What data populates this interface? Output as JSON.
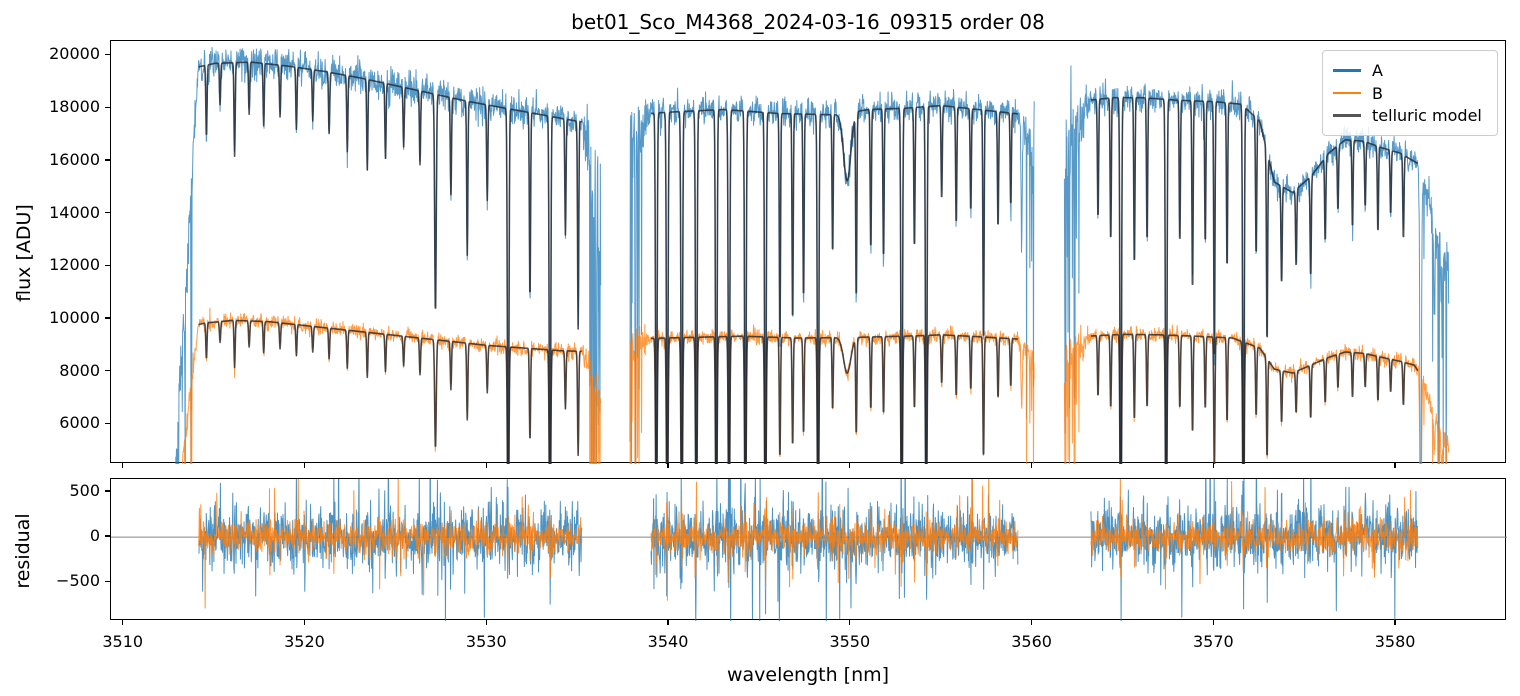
{
  "title": "bet01_Sco_M4368_2024-03-16_09315  order 08",
  "legend": {
    "items": [
      {
        "label": "A",
        "color": "#1f77b4"
      },
      {
        "label": "B",
        "color": "#ff7f0e"
      },
      {
        "label": "telluric model",
        "color": "#555555"
      }
    ]
  },
  "chart_data": {
    "type": "line",
    "title": "bet01_Sco_M4368_2024-03-16_09315  order 08",
    "xlabel": "wavelength [nm]",
    "ylabel_top": "flux [ADU]",
    "ylabel_bottom": "residual",
    "xlim": [
      3509.3,
      3586.1
    ],
    "ylim_top": [
      4500,
      20550
    ],
    "ylim_bottom": [
      -930,
      645
    ],
    "xticks": [
      3510,
      3520,
      3530,
      3540,
      3550,
      3560,
      3570,
      3580
    ],
    "yticks_top": [
      6000,
      8000,
      10000,
      12000,
      14000,
      16000,
      18000,
      20000
    ],
    "yticks_bottom": [
      "−500",
      "0",
      "500"
    ],
    "yticks_bottom_values": [
      -500,
      0,
      500
    ],
    "grid": false,
    "legend_position": "upper right",
    "series": [
      {
        "name": "A",
        "color": "#1f77b4",
        "alpha": 0.75,
        "lw": 1.0
      },
      {
        "name": "B",
        "color": "#ff7f0e",
        "alpha": 0.78,
        "lw": 1.0
      },
      {
        "name": "telluric model",
        "color": "#23272f",
        "alpha": 0.8,
        "lw": 1.6
      }
    ],
    "residual_zero_line_color": "#888888",
    "noise": {
      "seed": 42,
      "dx": 0.02,
      "rel": 0.012,
      "line_boost": 1.8,
      "abs_A": 180,
      "abs_B": 90,
      "res_A": 165,
      "res_B": 85,
      "res_line_boost": 2.4,
      "tail_p": 0.05,
      "tail_A": 520,
      "tail_B": 260,
      "default_line_width": 0.045
    },
    "segments": [
      {
        "range": [
          3512.86,
          3536.25
        ],
        "core": [
          3514.1,
          3535.2
        ],
        "edge_left": {
          "low": 0.25,
          "noise": 5.0,
          "drop": 0.25,
          "drop_lo": 0.25,
          "drop_hi": 0.95
        },
        "edge_right": {
          "low": 0.8,
          "noise": 8.0,
          "drop": 0.5,
          "drop_lo": 0.05,
          "drop_hi": 0.9
        },
        "continuum_A": [
          [
            3512.86,
            18800
          ],
          [
            3513.3,
            19300
          ],
          [
            3514,
            19550
          ],
          [
            3515,
            19700
          ],
          [
            3517,
            19750
          ],
          [
            3519,
            19600
          ],
          [
            3521,
            19400
          ],
          [
            3523,
            19150
          ],
          [
            3525,
            18850
          ],
          [
            3527,
            18550
          ],
          [
            3529,
            18250
          ],
          [
            3531,
            18000
          ],
          [
            3533,
            17750
          ],
          [
            3535,
            17500
          ],
          [
            3536.25,
            17400
          ]
        ],
        "continuum_B": [
          [
            3512.86,
            9400
          ],
          [
            3513.5,
            9700
          ],
          [
            3514.5,
            9850
          ],
          [
            3516,
            9950
          ],
          [
            3518,
            9900
          ],
          [
            3520,
            9750
          ],
          [
            3522,
            9600
          ],
          [
            3524,
            9450
          ],
          [
            3526,
            9300
          ],
          [
            3528,
            9150
          ],
          [
            3530,
            9000
          ],
          [
            3532,
            8900
          ],
          [
            3534,
            8800
          ],
          [
            3536.25,
            8750
          ]
        ],
        "lines": [
          [
            3514.55,
            0.14
          ],
          [
            3515.3,
            0.08
          ],
          [
            3516.1,
            0.18
          ],
          [
            3516.9,
            0.1
          ],
          [
            3517.7,
            0.12
          ],
          [
            3518.6,
            0.1
          ],
          [
            3519.5,
            0.12
          ],
          [
            3520.4,
            0.1
          ],
          [
            3521.3,
            0.12
          ],
          [
            3522.3,
            0.15
          ],
          [
            3523.4,
            0.18
          ],
          [
            3524.4,
            0.15
          ],
          [
            3525.4,
            0.12
          ],
          [
            3526.3,
            0.15
          ],
          [
            3527.15,
            0.45,
            0.06
          ],
          [
            3528.0,
            0.2
          ],
          [
            3528.9,
            0.32
          ],
          [
            3530.0,
            0.2
          ],
          [
            3531.15,
            0.93,
            0.055
          ],
          [
            3532.35,
            0.4
          ],
          [
            3533.45,
            0.96,
            0.055
          ],
          [
            3534.3,
            0.25
          ],
          [
            3535.0,
            0.45
          ]
        ]
      },
      {
        "range": [
          3537.85,
          3560.1
        ],
        "core": [
          3539.0,
          3559.2
        ],
        "edge_left": {
          "low": 0.95,
          "noise": 5.0,
          "drop": 0.45,
          "drop_lo": 0.05,
          "drop_hi": 0.9
        },
        "edge_right": {
          "low": 0.9,
          "noise": 3.5,
          "drop": 0.25,
          "drop_lo": 0.3,
          "drop_hi": 0.95
        },
        "continuum_A": [
          [
            3537.85,
            17750
          ],
          [
            3540,
            17850
          ],
          [
            3543,
            17950
          ],
          [
            3546,
            17800
          ],
          [
            3549,
            17750
          ],
          [
            3551,
            17950
          ],
          [
            3553,
            18000
          ],
          [
            3555,
            18100
          ],
          [
            3557,
            17950
          ],
          [
            3559,
            17800
          ],
          [
            3560.1,
            17700
          ]
        ],
        "continuum_B": [
          [
            3537.85,
            9250
          ],
          [
            3541,
            9300
          ],
          [
            3544,
            9350
          ],
          [
            3547,
            9280
          ],
          [
            3550,
            9300
          ],
          [
            3553,
            9350
          ],
          [
            3555,
            9400
          ],
          [
            3557,
            9330
          ],
          [
            3559,
            9250
          ],
          [
            3560.1,
            9200
          ]
        ],
        "lines": [
          [
            3539.3,
            0.9,
            0.055
          ],
          [
            3539.9,
            0.95,
            0.055
          ],
          [
            3540.7,
            0.97,
            0.055
          ],
          [
            3541.5,
            0.95,
            0.055
          ],
          [
            3542.6,
            0.97,
            0.055
          ],
          [
            3543.3,
            0.9,
            0.055
          ],
          [
            3544.2,
            0.95,
            0.055
          ],
          [
            3545.3,
            0.98,
            0.055
          ],
          [
            3546.1,
            0.5
          ],
          [
            3546.8,
            0.45
          ],
          [
            3547.4,
            0.4
          ],
          [
            3548.2,
            0.95,
            0.055
          ],
          [
            3549.0,
            0.3
          ],
          [
            3549.8,
            0.145,
            0.28
          ],
          [
            3550.3,
            0.4
          ],
          [
            3551.1,
            0.3
          ],
          [
            3551.8,
            0.32
          ],
          [
            3552.8,
            0.97,
            0.055
          ],
          [
            3553.5,
            0.3
          ],
          [
            3554.15,
            0.9,
            0.055
          ],
          [
            3555.0,
            0.2
          ],
          [
            3555.8,
            0.25
          ],
          [
            3556.6,
            0.22
          ],
          [
            3557.3,
            0.5
          ],
          [
            3558.1,
            0.25
          ],
          [
            3558.8,
            0.2
          ],
          [
            3559.4,
            0.28
          ]
        ]
      },
      {
        "range": [
          3561.75,
          3582.9
        ],
        "core": [
          3563.2,
          3581.2
        ],
        "edge_left": {
          "low": 0.9,
          "noise": 5.0,
          "drop": 0.35,
          "drop_lo": 0.3,
          "drop_hi": 0.95
        },
        "edge_right": {
          "low": 0.85,
          "noise": 3.0,
          "drop": 0.3,
          "drop_lo": 0.3,
          "drop_hi": 0.95
        },
        "continuum_A": [
          [
            3561.75,
            18100
          ],
          [
            3563,
            18300
          ],
          [
            3564.5,
            18400
          ],
          [
            3566,
            18400
          ],
          [
            3568,
            18300
          ],
          [
            3570,
            18250
          ],
          [
            3571.5,
            18150
          ],
          [
            3572.5,
            17500
          ],
          [
            3573.3,
            15200
          ],
          [
            3574.3,
            14800
          ],
          [
            3575.3,
            15400
          ],
          [
            3576.3,
            16300
          ],
          [
            3577.2,
            16800
          ],
          [
            3578.2,
            16750
          ],
          [
            3579.2,
            16500
          ],
          [
            3580.2,
            16300
          ],
          [
            3581.2,
            15900
          ],
          [
            3581.7,
            15400
          ],
          [
            3582.3,
            14600
          ],
          [
            3582.9,
            13400
          ]
        ],
        "continuum_B": [
          [
            3561.75,
            9200
          ],
          [
            3563,
            9350
          ],
          [
            3565,
            9420
          ],
          [
            3567,
            9400
          ],
          [
            3569,
            9350
          ],
          [
            3571,
            9280
          ],
          [
            3572.5,
            8900
          ],
          [
            3573.3,
            8100
          ],
          [
            3574.3,
            7950
          ],
          [
            3575.3,
            8250
          ],
          [
            3576.3,
            8550
          ],
          [
            3577.2,
            8750
          ],
          [
            3578.2,
            8700
          ],
          [
            3579.2,
            8550
          ],
          [
            3580.2,
            8400
          ],
          [
            3581,
            8250
          ],
          [
            3581.6,
            7600
          ],
          [
            3582.1,
            6900
          ],
          [
            3582.5,
            6300
          ],
          [
            3582.9,
            6100
          ]
        ],
        "lines": [
          [
            3563.6,
            0.25
          ],
          [
            3564.3,
            0.3
          ],
          [
            3564.85,
            0.97,
            0.055
          ],
          [
            3565.6,
            0.35
          ],
          [
            3566.3,
            0.3
          ],
          [
            3567.35,
            0.97,
            0.055
          ],
          [
            3568.1,
            0.3
          ],
          [
            3568.8,
            0.4
          ],
          [
            3569.5,
            0.3
          ],
          [
            3570.0,
            0.55
          ],
          [
            3570.7,
            0.35
          ],
          [
            3571.6,
            0.97,
            0.055
          ],
          [
            3572.3,
            0.3
          ],
          [
            3572.9,
            0.45
          ],
          [
            3573.7,
            0.25
          ],
          [
            3574.5,
            0.2
          ],
          [
            3575.3,
            0.25
          ],
          [
            3576.1,
            0.2
          ],
          [
            3576.8,
            0.15
          ],
          [
            3577.6,
            0.2
          ],
          [
            3578.3,
            0.15
          ],
          [
            3579.0,
            0.2
          ],
          [
            3579.7,
            0.15
          ],
          [
            3580.4,
            0.2
          ],
          [
            3581.35,
            0.98,
            0.055
          ],
          [
            3582.1,
            0.2
          ],
          [
            3582.5,
            0.15
          ]
        ]
      }
    ]
  }
}
